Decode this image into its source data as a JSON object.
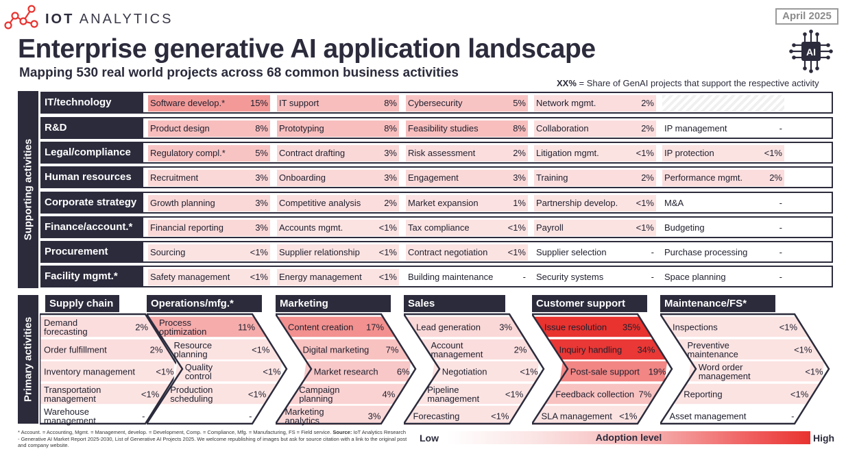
{
  "brand": {
    "bold": "IOT",
    "light": " ANALYTICS"
  },
  "date": "April 2025",
  "title": "Enterprise generative AI application landscape",
  "subtitle": "Mapping 530 real world projects across 68 common business activities",
  "ai_chip_label": "AI",
  "legend_note": {
    "bold": "XX%",
    "text": " = Share of GenAI projects that support the respective activity"
  },
  "supporting_label": "Supporting activities",
  "primary_label": "Primary activities",
  "colors": {
    "dark": "#2b2b3c",
    "high": "#e8332f",
    "low": "#ffffff"
  },
  "supporting": [
    {
      "name": "IT/technology",
      "cells": [
        {
          "name": "Software develop.*",
          "pct": "15%",
          "level": 0.43
        },
        {
          "name": "IT support",
          "pct": "8%",
          "level": 0.23
        },
        {
          "name": "Cybersecurity",
          "pct": "5%",
          "level": 0.2
        },
        {
          "name": "Network mgmt.",
          "pct": "2%",
          "level": 0.06
        },
        {
          "name": "",
          "pct": "",
          "level": 0
        }
      ]
    },
    {
      "name": "R&D",
      "cells": [
        {
          "name": "Product design",
          "pct": "8%",
          "level": 0.23
        },
        {
          "name": "Prototyping",
          "pct": "8%",
          "level": 0.23
        },
        {
          "name": "Feasibility studies",
          "pct": "8%",
          "level": 0.23
        },
        {
          "name": "Collaboration",
          "pct": "2%",
          "level": 0.06
        },
        {
          "name": "IP management",
          "pct": "-",
          "level": 0
        }
      ]
    },
    {
      "name": "Legal/compliance",
      "cells": [
        {
          "name": "Regulatory compl.*",
          "pct": "5%",
          "level": 0.2
        },
        {
          "name": "Contract drafting",
          "pct": "3%",
          "level": 0.09
        },
        {
          "name": "Risk assessment",
          "pct": "2%",
          "level": 0.06
        },
        {
          "name": "Litigation mgmt.",
          "pct": "<1%",
          "level": 0.03
        },
        {
          "name": "IP protection",
          "pct": "<1%",
          "level": 0.03
        }
      ]
    },
    {
      "name": "Human resources",
      "cells": [
        {
          "name": "Recruitment",
          "pct": "3%",
          "level": 0.09
        },
        {
          "name": "Onboarding",
          "pct": "3%",
          "level": 0.09
        },
        {
          "name": "Engagement",
          "pct": "3%",
          "level": 0.09
        },
        {
          "name": "Training",
          "pct": "2%",
          "level": 0.06
        },
        {
          "name": "Performance mgmt.",
          "pct": "2%",
          "level": 0.06
        }
      ]
    },
    {
      "name": "Corporate strategy",
      "cells": [
        {
          "name": "Growth planning",
          "pct": "3%",
          "level": 0.09
        },
        {
          "name": "Competitive analysis",
          "pct": "2%",
          "level": 0.06
        },
        {
          "name": "Market expansion",
          "pct": "1%",
          "level": 0.04
        },
        {
          "name": "Partnership develop.",
          "pct": "<1%",
          "level": 0.03
        },
        {
          "name": "M&A",
          "pct": "-",
          "level": 0
        }
      ]
    },
    {
      "name": "Finance/account.*",
      "cells": [
        {
          "name": "Financial reporting",
          "pct": "3%",
          "level": 0.09
        },
        {
          "name": "Accounts mgmt.",
          "pct": "<1%",
          "level": 0.03
        },
        {
          "name": "Tax compliance",
          "pct": "<1%",
          "level": 0.03
        },
        {
          "name": "Payroll",
          "pct": "<1%",
          "level": 0.03
        },
        {
          "name": "Budgeting",
          "pct": "-",
          "level": 0
        }
      ]
    },
    {
      "name": "Procurement",
      "cells": [
        {
          "name": "Sourcing",
          "pct": "<1%",
          "level": 0.03
        },
        {
          "name": "Supplier relationship",
          "pct": "<1%",
          "level": 0.03
        },
        {
          "name": "Contract negotiation",
          "pct": "<1%",
          "level": 0.03
        },
        {
          "name": "Supplier selection",
          "pct": "-",
          "level": 0
        },
        {
          "name": "Purchase processing",
          "pct": "-",
          "level": 0
        }
      ]
    },
    {
      "name": "Facility mgmt.*",
      "cells": [
        {
          "name": "Safety management",
          "pct": "<1%",
          "level": 0.03
        },
        {
          "name": "Energy management",
          "pct": "<1%",
          "level": 0.03
        },
        {
          "name": "Building maintenance",
          "pct": "-",
          "level": 0
        },
        {
          "name": "Security systems",
          "pct": "-",
          "level": 0
        },
        {
          "name": "Space planning",
          "pct": "-",
          "level": 0
        }
      ]
    }
  ],
  "primary": [
    {
      "name": "Supply chain",
      "cells": [
        {
          "name": "Demand\nforecasting",
          "pct": "2%",
          "level": 0.06
        },
        {
          "name": "Order fulfillment",
          "pct": "2%",
          "level": 0.06
        },
        {
          "name": "Inventory management",
          "pct": "<1%",
          "level": 0.03
        },
        {
          "name": "Transportation\nmanagement",
          "pct": "<1%",
          "level": 0.03
        },
        {
          "name": "Warehouse\nmanagement",
          "pct": "-",
          "level": 0
        }
      ]
    },
    {
      "name": "Operations/mfg.*",
      "cells": [
        {
          "name": "Process\noptimization",
          "pct": "11%",
          "level": 0.33
        },
        {
          "name": "Resource\nplanning",
          "pct": "<1%",
          "level": 0.03
        },
        {
          "name": "Quality\ncontrol",
          "pct": "<1%",
          "level": 0.03
        },
        {
          "name": "Production\nscheduling",
          "pct": "<1%",
          "level": 0.03
        },
        {
          "name": "",
          "pct": "-",
          "level": 0
        }
      ]
    },
    {
      "name": "Marketing",
      "cells": [
        {
          "name": "Content creation",
          "pct": "17%",
          "level": 0.48
        },
        {
          "name": "Digital marketing",
          "pct": "7%",
          "level": 0.21
        },
        {
          "name": "Market research",
          "pct": "6%",
          "level": 0.18
        },
        {
          "name": "Campaign\nplanning",
          "pct": "4%",
          "level": 0.12
        },
        {
          "name": "Marketing\nanalytics",
          "pct": "3%",
          "level": 0.09
        }
      ]
    },
    {
      "name": "Sales",
      "cells": [
        {
          "name": "Lead generation",
          "pct": "3%",
          "level": 0.09
        },
        {
          "name": "Account\nmanagement",
          "pct": "2%",
          "level": 0.06
        },
        {
          "name": "Negotiation",
          "pct": "<1%",
          "level": 0.03
        },
        {
          "name": "Pipeline\nmanagement",
          "pct": "<1%",
          "level": 0.03
        },
        {
          "name": "Forecasting",
          "pct": "<1%",
          "level": 0.03
        }
      ]
    },
    {
      "name": "Customer support",
      "cells": [
        {
          "name": "Issue resolution",
          "pct": "35%",
          "level": 1.0
        },
        {
          "name": "Inquiry handling",
          "pct": "34%",
          "level": 0.97
        },
        {
          "name": "Post-sale support",
          "pct": "19%",
          "level": 0.54
        },
        {
          "name": "Feedback collection",
          "pct": "7%",
          "level": 0.21
        },
        {
          "name": "SLA management",
          "pct": "<1%",
          "level": 0.03
        }
      ]
    },
    {
      "name": "Maintenance/FS*",
      "cells": [
        {
          "name": "Inspections",
          "pct": "<1%",
          "level": 0.03
        },
        {
          "name": "Preventive\nmaintenance",
          "pct": "<1%",
          "level": 0.03
        },
        {
          "name": "Word order\nmanagement",
          "pct": "<1%",
          "level": 0.03
        },
        {
          "name": "Reporting",
          "pct": "<1%",
          "level": 0.03
        },
        {
          "name": "Asset management",
          "pct": "-",
          "level": 0
        }
      ]
    }
  ],
  "footnote": {
    "text": "* Account. = Accounting, Mgmt. = Management, develop. = Development, Comp. = Compliance, Mfg. = Manufacturing, FS = Field service. ",
    "source_label": "Source:",
    "source_text": " IoT Analytics Research - Generative AI Market Report 2025-2030, List of Generative AI Projects 2025. We welcome republishing of images but ask for source citation with a link to the original post and company website."
  },
  "scale": {
    "low": "Low",
    "mid": "Adoption level",
    "high": "High"
  }
}
